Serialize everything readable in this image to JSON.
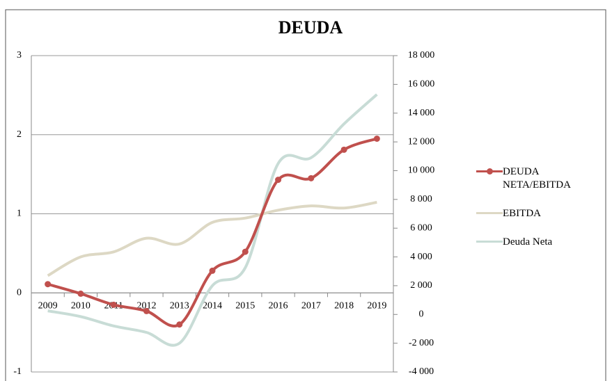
{
  "chart_data": {
    "type": "line",
    "title": "DEUDA",
    "categories": [
      "2009",
      "2010",
      "2011",
      "2012",
      "2013",
      "2014",
      "2015",
      "2016",
      "2017",
      "2018",
      "2019"
    ],
    "series": [
      {
        "name": "DEUDA NETA/EBITDA",
        "color": "#c0504d",
        "markers": true,
        "values": [
          0.11,
          -0.01,
          -0.15,
          -0.23,
          -0.4,
          0.28,
          0.52,
          1.43,
          1.45,
          1.81,
          1.95
        ]
      },
      {
        "name": "EBITDA",
        "color": "#ddd8c4",
        "axis": "y2",
        "values": [
          2700,
          4000,
          4350,
          5300,
          4900,
          6400,
          6700,
          7250,
          7550,
          7400,
          7800
        ]
      },
      {
        "name": "Deuda Neta",
        "color": "#c8dcd6",
        "axis": "y2",
        "values": [
          250,
          -150,
          -800,
          -1250,
          -2000,
          2000,
          3250,
          10500,
          10900,
          13250,
          15300
        ]
      }
    ],
    "ylim": [
      -1,
      3
    ],
    "yticks": [
      -1,
      0,
      1,
      2,
      3
    ],
    "y2lim": [
      -4000,
      18000
    ],
    "y2ticks": [
      {
        "value": -4000,
        "label": "-4 000"
      },
      {
        "value": -2000,
        "label": "-2 000"
      },
      0,
      {
        "value": 2000,
        "label": "2 000"
      },
      {
        "value": 4000,
        "label": "4 000"
      },
      {
        "value": 6000,
        "label": "6 000"
      },
      {
        "value": 8000,
        "label": "8 000"
      },
      {
        "value": 10000,
        "label": "10 000"
      },
      {
        "value": 12000,
        "label": "12 000"
      },
      {
        "value": 14000,
        "label": "14 000"
      },
      {
        "value": 16000,
        "label": "16 000"
      },
      {
        "value": 18000,
        "label": "18 000"
      }
    ],
    "grid": true,
    "legend": "right"
  }
}
